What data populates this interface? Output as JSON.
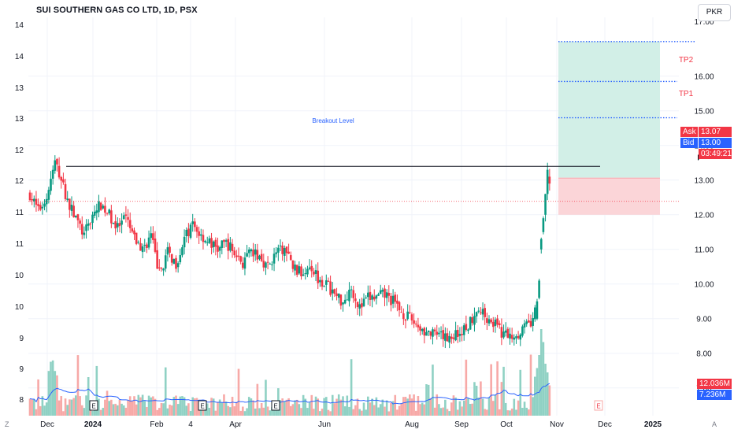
{
  "title": "SUI SOUTHERN GAS CO LTD, 1D, PSX",
  "currency_button": "PKR",
  "left_axis_labels": [
    "14",
    "14",
    "13",
    "13",
    "12",
    "12",
    "11",
    "11",
    "10",
    "10",
    "9",
    "9",
    "8"
  ],
  "left_corner": "Z",
  "right_corner": "A",
  "right_partial_label": "17.00",
  "breakout_label": "Breakout Level",
  "tp_labels": [
    "TP2",
    "TP1"
  ],
  "ask": {
    "label": "Ask",
    "value": "13.07",
    "color": "#f23645"
  },
  "bid": {
    "label": "Bid",
    "value": "13.00",
    "color": "#2962ff"
  },
  "countdown": "03:49:21",
  "volume_tags": [
    {
      "value": "12.036M",
      "color": "#f23645"
    },
    {
      "value": "7.236M",
      "color": "#2962ff"
    }
  ],
  "earnings_marker": "E",
  "colors": {
    "up": "#089981",
    "down": "#f23645",
    "volume_ma": "#2962ff",
    "target_zone": "#d2efe7",
    "stop_zone": "#fbd5d8",
    "dotted": "#2962ff"
  },
  "chart_data": {
    "type": "candlestick",
    "symbol": "SUI SOUTHERN GAS CO LTD",
    "interval": "1D",
    "exchange": "PSX",
    "y_range": [
      6.2,
      17.7
    ],
    "x_labels": [
      "Dec",
      "2024",
      "Feb",
      "4",
      "Apr",
      "Jun",
      "Aug",
      "Sep",
      "Oct",
      "Nov",
      "Dec",
      "2025"
    ],
    "y_ticks": [
      7,
      8,
      9,
      10,
      11,
      12,
      13,
      14,
      15,
      16
    ],
    "close_path": [
      [
        0,
        12.6
      ],
      [
        4,
        12.1
      ],
      [
        8,
        12.5
      ],
      [
        12,
        13.5
      ],
      [
        14,
        13.2
      ],
      [
        18,
        12.4
      ],
      [
        22,
        11.9
      ],
      [
        26,
        11.4
      ],
      [
        30,
        12.0
      ],
      [
        34,
        12.3
      ],
      [
        38,
        12.0
      ],
      [
        42,
        11.6
      ],
      [
        46,
        11.9
      ],
      [
        50,
        11.3
      ],
      [
        54,
        11.0
      ],
      [
        58,
        11.4
      ],
      [
        62,
        10.3
      ],
      [
        66,
        10.9
      ],
      [
        70,
        10.6
      ],
      [
        74,
        11.3
      ],
      [
        78,
        11.7
      ],
      [
        82,
        11.4
      ],
      [
        86,
        11.2
      ],
      [
        90,
        11.0
      ],
      [
        94,
        11.2
      ],
      [
        98,
        10.9
      ],
      [
        102,
        10.6
      ],
      [
        106,
        10.9
      ],
      [
        110,
        10.8
      ],
      [
        114,
        10.5
      ],
      [
        118,
        10.9
      ],
      [
        122,
        11.0
      ],
      [
        126,
        10.5
      ],
      [
        130,
        10.3
      ],
      [
        134,
        10.6
      ],
      [
        138,
        10.2
      ],
      [
        142,
        10.0
      ],
      [
        146,
        9.7
      ],
      [
        150,
        9.5
      ],
      [
        154,
        9.9
      ],
      [
        158,
        9.3
      ],
      [
        162,
        9.6
      ],
      [
        166,
        9.6
      ],
      [
        170,
        9.7
      ],
      [
        174,
        9.5
      ],
      [
        178,
        9.2
      ],
      [
        182,
        9.0
      ],
      [
        186,
        8.8
      ],
      [
        190,
        8.6
      ],
      [
        194,
        8.5
      ],
      [
        198,
        8.45
      ],
      [
        202,
        8.5
      ],
      [
        206,
        8.6
      ],
      [
        210,
        8.8
      ],
      [
        214,
        9.3
      ],
      [
        218,
        9.1
      ],
      [
        222,
        8.9
      ],
      [
        226,
        8.6
      ],
      [
        230,
        8.5
      ],
      [
        234,
        8.6
      ],
      [
        238,
        8.8
      ],
      [
        241,
        8.9
      ],
      [
        243,
        9.5
      ],
      [
        245,
        11.3
      ],
      [
        247,
        12.2
      ],
      [
        249,
        13.0
      ]
    ],
    "volume_tag_values": [
      "12.036M",
      "7.236M"
    ],
    "annotations": {
      "breakout_level": 13.4,
      "entry": 13.07,
      "stop": 12.0,
      "tp1": 14.8,
      "tp2": 15.85,
      "target": 17.0
    }
  }
}
